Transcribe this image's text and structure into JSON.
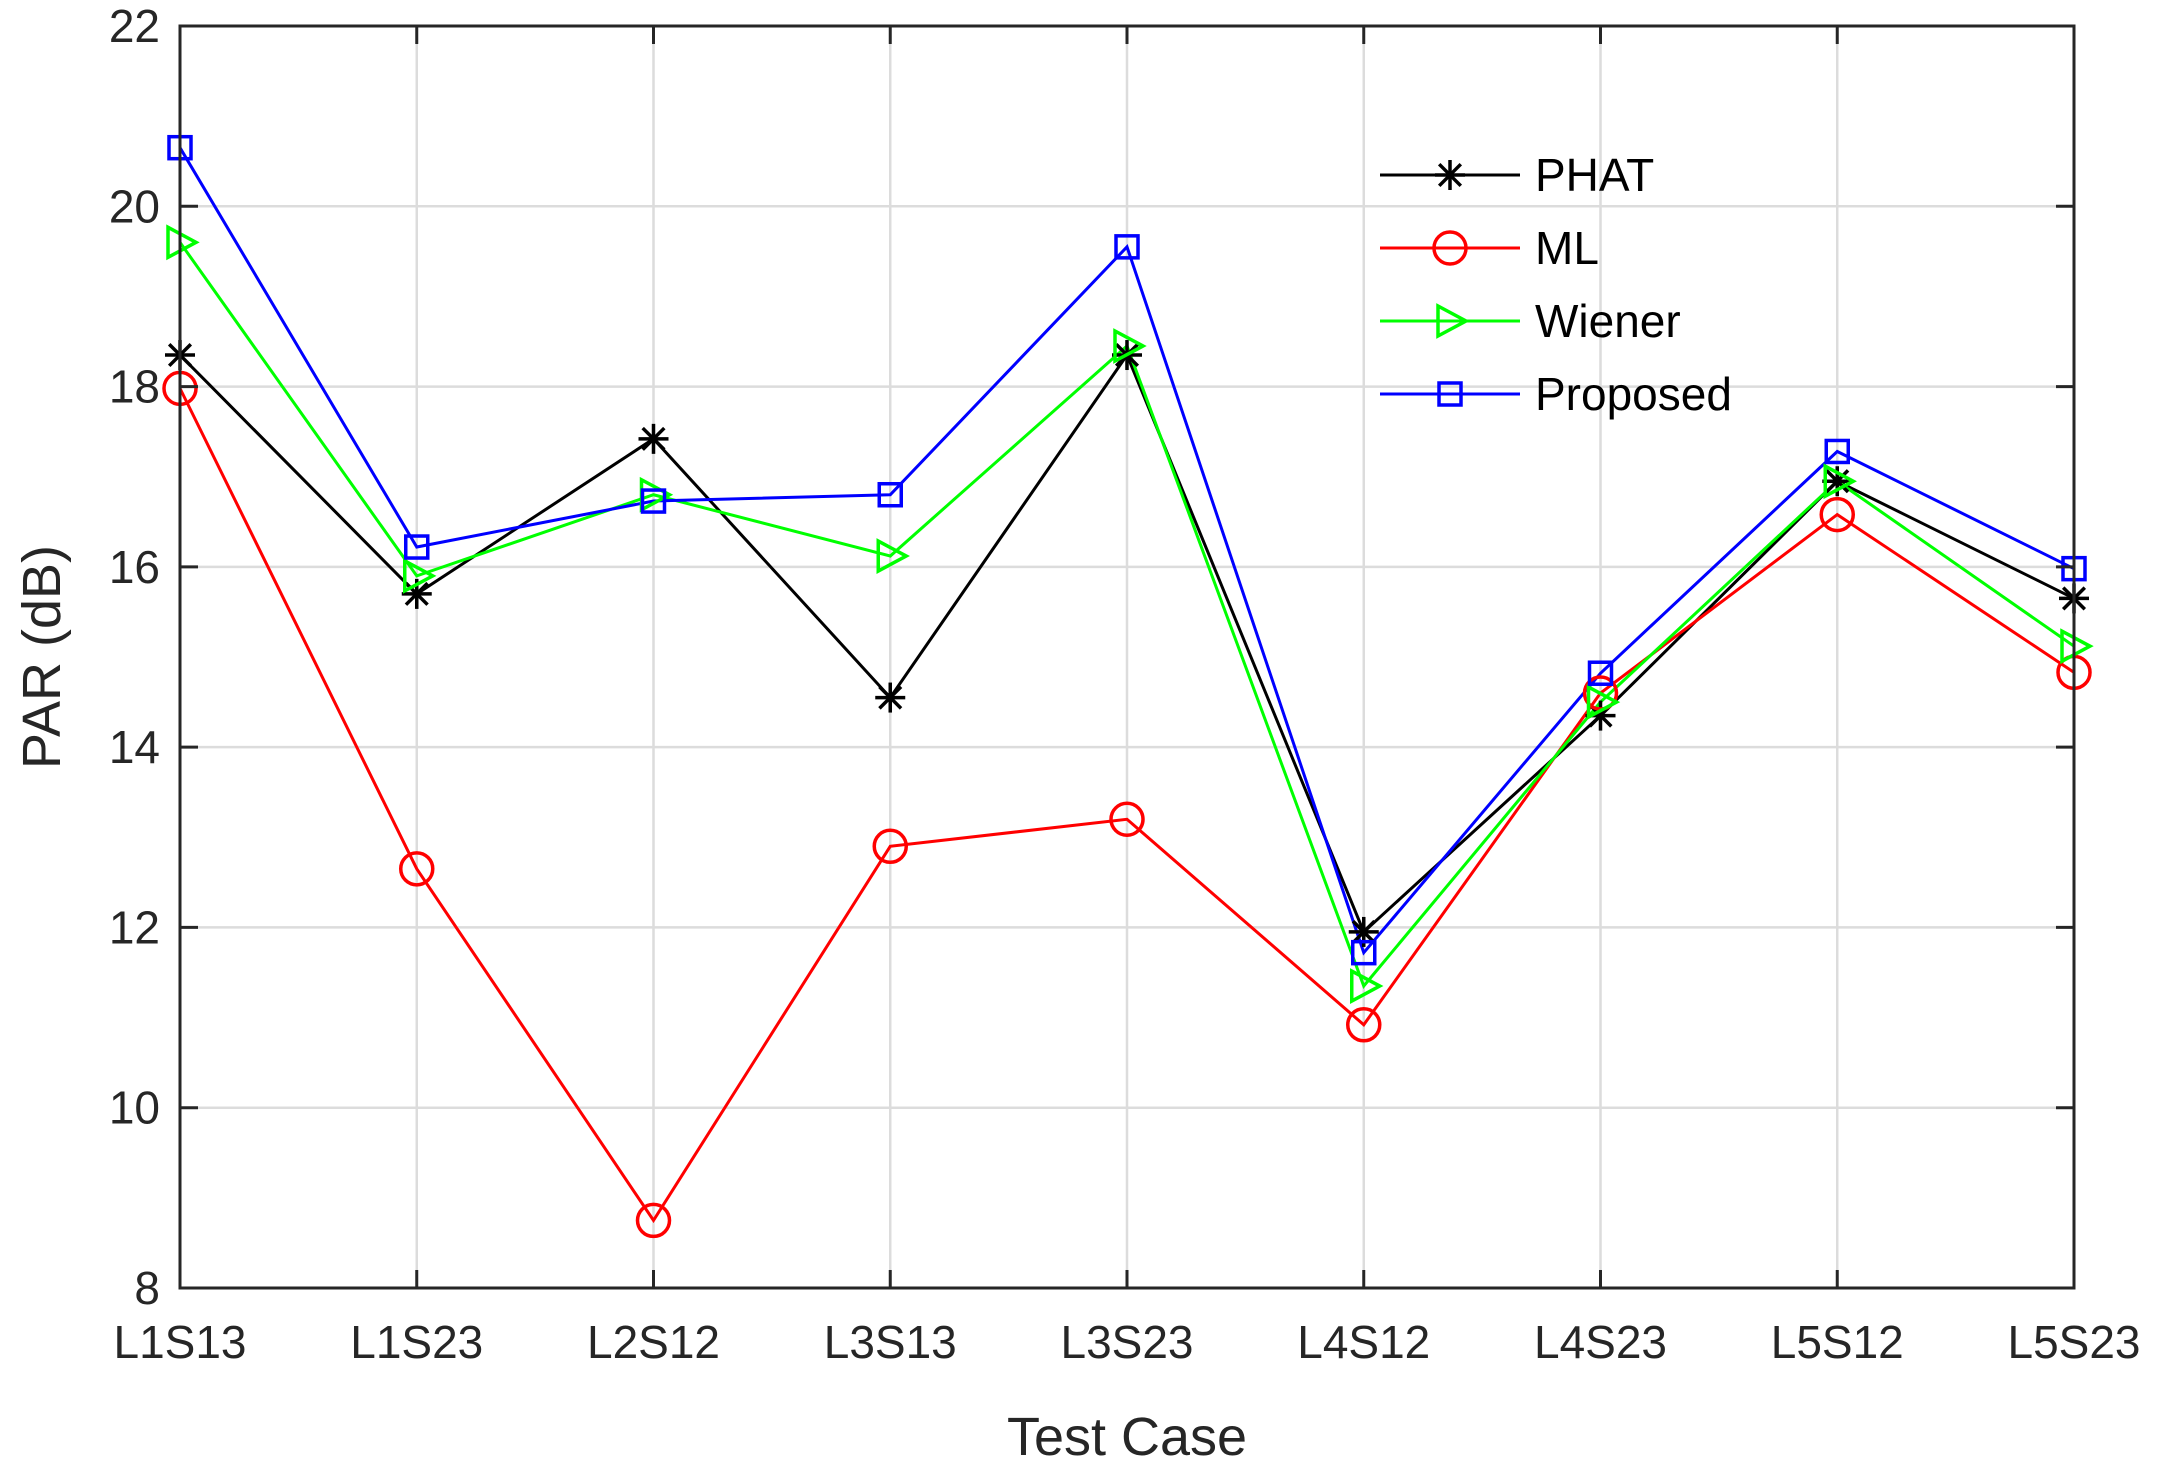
{
  "chart_data": {
    "type": "line",
    "categories": [
      "L1S13",
      "L1S23",
      "L2S12",
      "L3S13",
      "L3S23",
      "L4S12",
      "L4S23",
      "L5S12",
      "L5S23"
    ],
    "xlabel": "Test Case",
    "ylabel": "PAR (dB)",
    "ylim": [
      8,
      22
    ],
    "yticks": [
      8,
      10,
      12,
      14,
      16,
      18,
      20,
      22
    ],
    "grid": true,
    "legend_position": "top-right",
    "series": [
      {
        "name": "PHAT",
        "color": "#000000",
        "marker": "asterisk",
        "values": [
          18.35,
          15.7,
          17.42,
          14.55,
          18.35,
          11.95,
          14.35,
          16.95,
          15.65
        ]
      },
      {
        "name": "ML",
        "color": "#ff0000",
        "marker": "circle",
        "values": [
          17.98,
          12.65,
          8.75,
          12.9,
          13.2,
          10.92,
          14.6,
          16.58,
          14.83
        ]
      },
      {
        "name": "Wiener",
        "color": "#00ff00",
        "marker": "triangle-right",
        "values": [
          19.6,
          15.9,
          16.8,
          16.12,
          18.45,
          11.35,
          14.5,
          16.95,
          15.12
        ]
      },
      {
        "name": "Proposed",
        "color": "#0000ff",
        "marker": "square",
        "values": [
          20.65,
          16.22,
          16.73,
          16.8,
          19.55,
          11.72,
          14.82,
          17.28,
          15.98
        ]
      }
    ]
  }
}
